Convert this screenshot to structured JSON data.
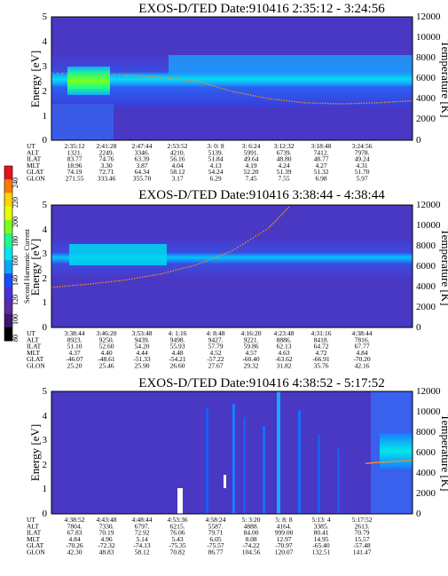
{
  "colorbar": {
    "label": "Second Harmonic Current",
    "ticks": [
      "240",
      "220",
      "200",
      "180",
      "160",
      "140",
      "120",
      "100",
      "80"
    ],
    "colors": [
      "#e8101a",
      "#ff7a00",
      "#ffd400",
      "#e8ff00",
      "#7dff1a",
      "#19ff8a",
      "#00e8e8",
      "#00a8ff",
      "#1a4cff",
      "#4a2fd8",
      "#5a2aa8",
      "#3a1870",
      "#000000"
    ]
  },
  "tables": {
    "row_labels": [
      "UT",
      "ALT",
      "ILAT",
      "MLT",
      "GLAT",
      "GLON"
    ]
  },
  "chart_data": [
    {
      "type": "heatmap",
      "title": "EXOS-D/TED   Date:910416  2:35:12 - 3:24:56",
      "ylabel": "Energy [eV]",
      "y2label": "Temperature [K]",
      "ylim": [
        0,
        5
      ],
      "y2lim": [
        0,
        12000
      ],
      "yticks": [
        "5",
        "4",
        "3",
        "2",
        "1",
        "0"
      ],
      "y2ticks": [
        "12000",
        "10000",
        "8000",
        "6000",
        "4000",
        "2000",
        "0"
      ],
      "band_center_ev": 2.7,
      "temperature_profile": [
        {
          "t": 0.0,
          "k": 6600
        },
        {
          "t": 0.2,
          "k": 6400
        },
        {
          "t": 0.3,
          "k": 6200
        },
        {
          "t": 0.4,
          "k": 5800
        },
        {
          "t": 0.5,
          "k": 4800
        },
        {
          "t": 0.6,
          "k": 4100
        },
        {
          "t": 0.7,
          "k": 3700
        },
        {
          "t": 0.8,
          "k": 3600
        },
        {
          "t": 0.9,
          "k": 3700
        },
        {
          "t": 1.0,
          "k": 3900
        }
      ],
      "rows": [
        [
          "UT",
          "2:35:12",
          "2:41:28",
          "2:47:44",
          "2:53:52",
          "3: 0: 8",
          "3: 6:24",
          "3:12:32",
          "3:18:48",
          "3:24:56"
        ],
        [
          "ALT",
          "1321.",
          "2249.",
          "3346.",
          "4210.",
          "5139.",
          "5991.",
          "6739.",
          "7412.",
          "7978."
        ],
        [
          "ILAT",
          "83.77",
          "74.76",
          "63.39",
          "56.16",
          "51.84",
          "49.64",
          "48.80",
          "48.77",
          "49.24"
        ],
        [
          "MLT",
          "18.96",
          "3.30",
          "3.87",
          "4.04",
          "4.13",
          "4.19",
          "4.24",
          "4.27",
          "4.31"
        ],
        [
          "GLAT",
          "74.19",
          "72.71",
          "64.34",
          "58.12",
          "54.24",
          "52.20",
          "51.39",
          "51.32",
          "51.70"
        ],
        [
          "GLON",
          "271.55",
          "333.46",
          "355.70",
          "3.17",
          "6.29",
          "7.45",
          "7.55",
          "6.98",
          "5.97"
        ]
      ]
    },
    {
      "type": "heatmap",
      "title": "EXOS-D/TED   Date:910416  3:38:44 - 4:38:44",
      "ylabel": "Energy [eV]",
      "y2label": "Temperature [K]",
      "ylim": [
        0,
        5
      ],
      "y2lim": [
        0,
        12000
      ],
      "yticks": [
        "5",
        "4",
        "3",
        "2",
        "1",
        "0"
      ],
      "y2ticks": [
        "12000",
        "10000",
        "8000",
        "6000",
        "4000",
        "2000",
        "0"
      ],
      "band_center_ev": 2.95,
      "temperature_profile": [
        {
          "t": 0.0,
          "k": 4000
        },
        {
          "t": 0.1,
          "k": 4300
        },
        {
          "t": 0.2,
          "k": 4700
        },
        {
          "t": 0.3,
          "k": 5300
        },
        {
          "t": 0.4,
          "k": 6200
        },
        {
          "t": 0.5,
          "k": 7600
        },
        {
          "t": 0.6,
          "k": 9800
        },
        {
          "t": 0.66,
          "k": 12000
        }
      ],
      "rows": [
        [
          "UT",
          "3:38:44",
          "3:46:20",
          "3:53:48",
          "4: 1:16",
          "4: 8:48",
          "4:16:20",
          "4:23:48",
          "4:31:16",
          "4:38:44"
        ],
        [
          "ALT",
          "8923.",
          "9250.",
          "9439.",
          "9498.",
          "9427.",
          "9221.",
          "8886.",
          "8418.",
          "7816."
        ],
        [
          "ILAT",
          "51.10",
          "52.60",
          "54.20",
          "55.93",
          "57.79",
          "59.86",
          "62.13",
          "64.72",
          "67.77"
        ],
        [
          "MLT",
          "4.37",
          "4.40",
          "4.44",
          "4.48",
          "4.52",
          "4.57",
          "4.63",
          "4.72",
          "4.84"
        ],
        [
          "GLAT",
          "-46.07",
          "-48.61",
          "-51.33",
          "-54.21",
          "-57.22",
          "-60.40",
          "-63.62",
          "-66.91",
          "-70.20"
        ],
        [
          "GLON",
          "25.20",
          "25.46",
          "25.90",
          "26.60",
          "27.67",
          "29.32",
          "31.82",
          "35.76",
          "42.16"
        ]
      ]
    },
    {
      "type": "heatmap",
      "title": "EXOS-D/TED   Date:910416  4:38:52 - 5:17:52",
      "ylabel": "Energy [eV]",
      "y2label": "Temperature [K]",
      "ylim": [
        0,
        5
      ],
      "y2lim": [
        0,
        12000
      ],
      "yticks": [
        "5",
        "4",
        "3",
        "2",
        "1",
        "0"
      ],
      "y2ticks": [
        "12000",
        "10000",
        "8000",
        "6000",
        "4000",
        "2000",
        "0"
      ],
      "band_center_ev": 3.2,
      "temperature_profile": [
        {
          "t": 0.87,
          "k": 5000
        },
        {
          "t": 0.9,
          "k": 5100
        },
        {
          "t": 0.95,
          "k": 5200
        },
        {
          "t": 1.0,
          "k": 5300
        }
      ],
      "rows": [
        [
          "UT",
          "4:38:52",
          "4:43:48",
          "4:48:44",
          "4:53:36",
          "4:58:24",
          "5: 3:20",
          "5: 8: 8",
          "5:13: 4",
          "5:17:52"
        ],
        [
          "ALT",
          "7804.",
          "7330.",
          "6797.",
          "6215.",
          "5587.",
          "4888.",
          "4164.",
          "3385.",
          "2613."
        ],
        [
          "ILAT",
          "67.83",
          "70.19",
          "72.92",
          "76.06",
          "79.71",
          "84.00",
          "999.00",
          "80.41",
          "70.79"
        ],
        [
          "MLT",
          "4.84",
          "4.96",
          "5.14",
          "5.43",
          "6.05",
          "8.08",
          "12.97",
          "14.95",
          "15.57"
        ],
        [
          "GLAT",
          "-70.26",
          "-72.32",
          "-74.13",
          "-75.35",
          "-75.57",
          "-74.22",
          "-70.97",
          "-65.40",
          "-57.48"
        ],
        [
          "GLON",
          "42.30",
          "48.83",
          "58.12",
          "70.82",
          "86.77",
          "104.56",
          "120.07",
          "132.51",
          "141.47"
        ]
      ]
    }
  ]
}
